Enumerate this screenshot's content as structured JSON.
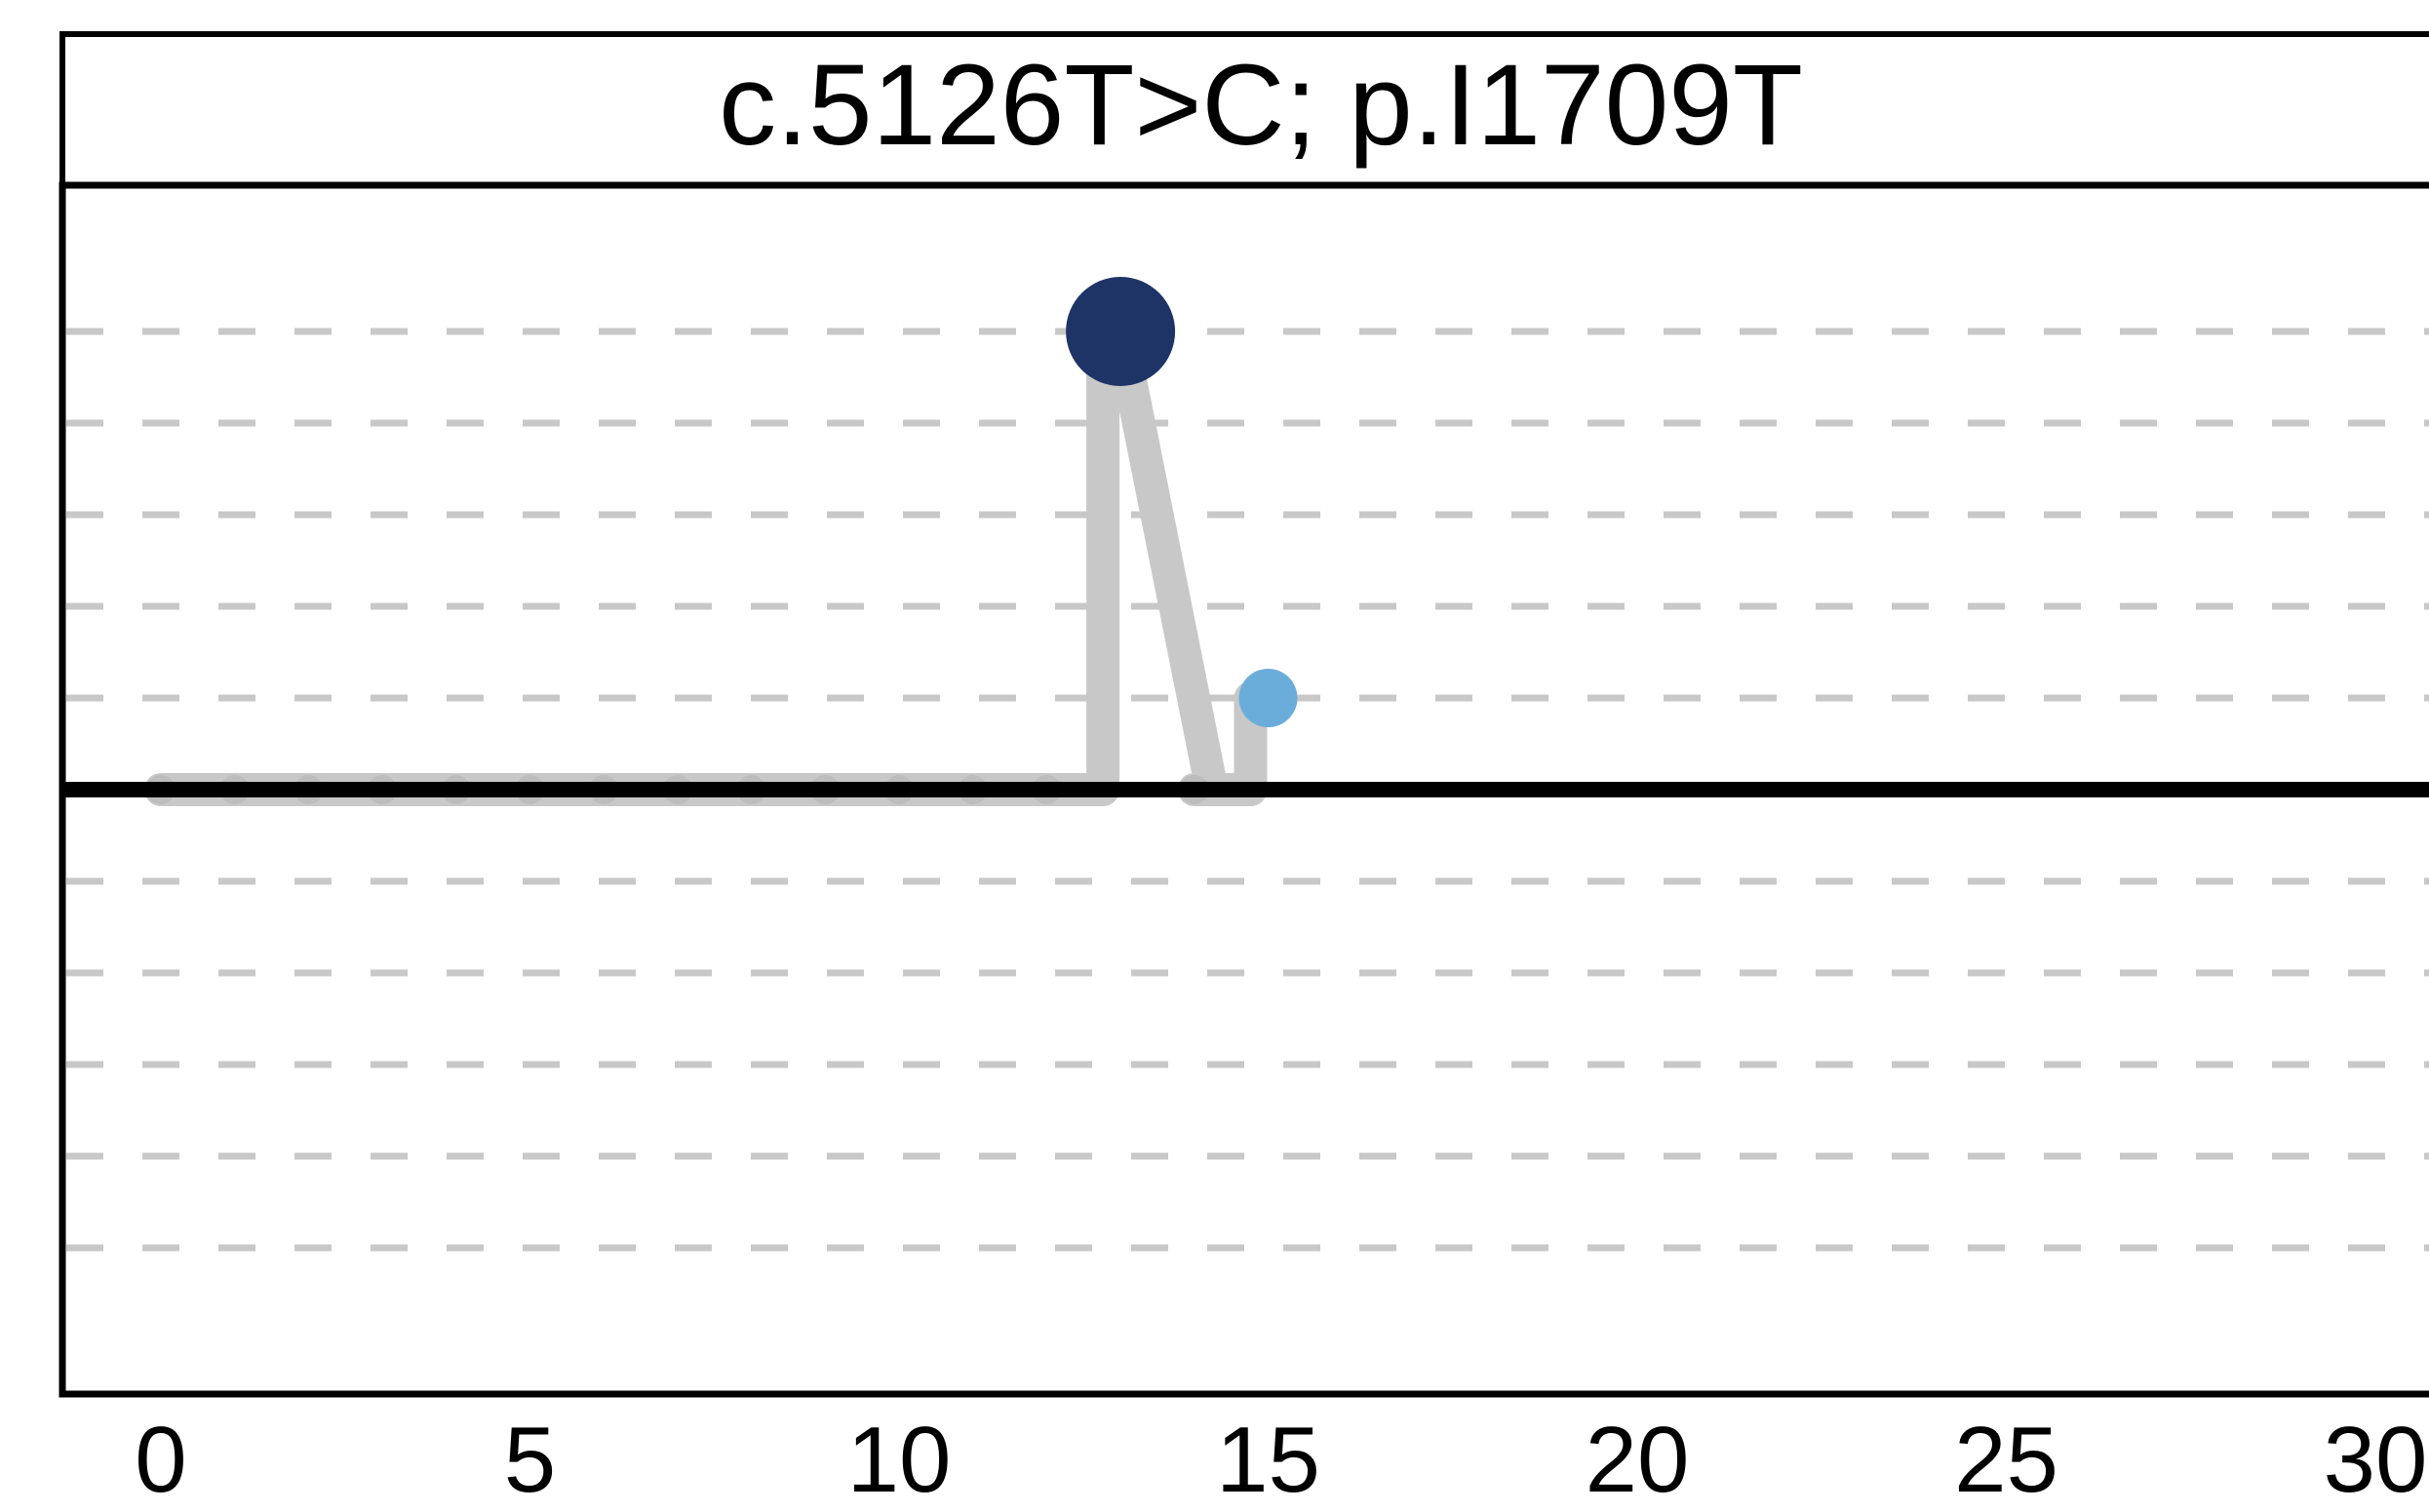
{
  "chart_data": {
    "type": "line",
    "title": "c.5126T>C; p.I1709T",
    "xlabel": "",
    "ylabel": "",
    "x_ticks": [
      "0",
      "5",
      "10",
      "15",
      "20",
      "25",
      "30"
    ],
    "xlim": [
      0,
      30
    ],
    "ylim": [
      -7,
      7
    ],
    "gridlines_y": [
      -5,
      -4,
      -3,
      -2,
      -1,
      1,
      2,
      3,
      4,
      5
    ],
    "grid": "dashed horizontal",
    "legend": "none",
    "series": [
      {
        "color": "#c8c8c8",
        "points": [
          {
            "x": 0,
            "y": 0
          },
          {
            "x": 1,
            "y": 0
          },
          {
            "x": 2,
            "y": 0
          },
          {
            "x": 3,
            "y": 0
          },
          {
            "x": 4,
            "y": 0
          },
          {
            "x": 5,
            "y": 0
          },
          {
            "x": 6,
            "y": 0
          },
          {
            "x": 7,
            "y": 0
          },
          {
            "x": 8,
            "y": 0
          },
          {
            "x": 9,
            "y": 0
          },
          {
            "x": 10,
            "y": 0
          },
          {
            "x": 11,
            "y": 0
          },
          {
            "x": 12,
            "y": 0
          },
          {
            "x": 13,
            "y": 5
          },
          {
            "x": 14,
            "y": 0
          },
          {
            "x": 15,
            "y": 1
          }
        ]
      }
    ],
    "highlighted_points": [
      {
        "x": 13,
        "y": 5,
        "color": "#1f3466"
      },
      {
        "x": 15,
        "y": 1,
        "color": "#6aaddb"
      }
    ],
    "colors": {
      "frame": "#000000",
      "baseline": "#000000",
      "grid": "#c8c8c8",
      "trace": "#c8c8c8"
    }
  }
}
